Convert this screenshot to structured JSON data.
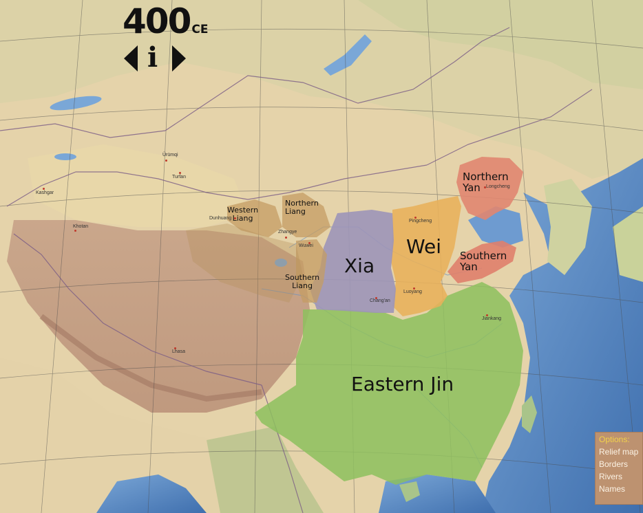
{
  "header": {
    "year": "400",
    "era": "CE",
    "info_label": "i"
  },
  "regions": {
    "northern_yan": "Northern\nYan",
    "southern_yan": "Southern\nYan",
    "wei": "Wei",
    "xia": "Xia",
    "eastern_jin": "Eastern Jin",
    "western_liang": "Western\nLiang",
    "northern_liang": "Northern\nLiang",
    "southern_liang": "Southern\nLiang"
  },
  "cities": {
    "urumqi": "Ürümqi",
    "turfan": "Turfan",
    "kashgar": "Kashgar",
    "khotan": "Khotan",
    "dunhuang": "Dunhuang",
    "zhangye": "Zhangye",
    "wuwei": "Wuwei",
    "pingcheng": "Pingcheng",
    "longcheng": "Longcheng",
    "changan": "Chang'an",
    "luoyang": "Luoyang",
    "jiankang": "Jiankang",
    "lhasa": "Lhasa"
  },
  "options": {
    "title": "Options:",
    "relief_map": "Relief map",
    "borders": "Borders",
    "rivers": "Rivers",
    "names": "Names"
  },
  "colors": {
    "eastern_jin": "#8dc05e",
    "wei": "#e8b15a",
    "xia": "#9c95b8",
    "northern_yan": "#e08670",
    "southern_yan": "#df7f6c",
    "liang_states": "#c49c63",
    "sea": "#5f8fc6",
    "options_title": "#f2d24b",
    "options_bg": "#bd9270"
  }
}
